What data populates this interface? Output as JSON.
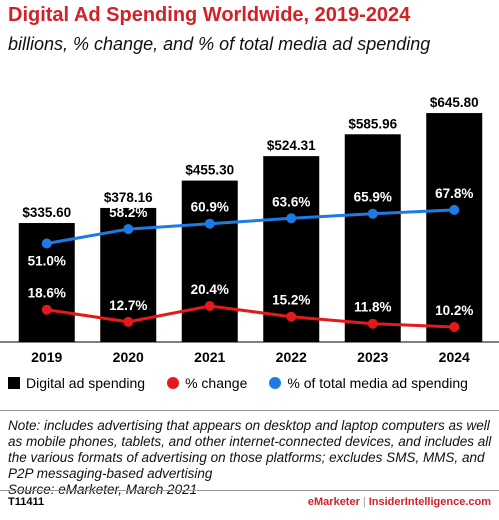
{
  "title": "Digital Ad Spending Worldwide, 2019-2024",
  "subtitle": "billions, % change, and % of total media ad spending",
  "colors": {
    "title": "#d32128",
    "bars": "#000000",
    "change_line": "#e31a1c",
    "share_line": "#1e7be3"
  },
  "chart_data": {
    "type": "bar",
    "categories": [
      "2019",
      "2020",
      "2021",
      "2022",
      "2023",
      "2024"
    ],
    "series": [
      {
        "name": "Digital ad spending",
        "kind": "bar",
        "values": [
          335.6,
          378.16,
          455.3,
          524.31,
          585.96,
          645.8
        ],
        "labels": [
          "$335.60",
          "$378.16",
          "$455.30",
          "$524.31",
          "$585.96",
          "$645.80"
        ]
      },
      {
        "name": "% change",
        "kind": "line",
        "values": [
          18.6,
          12.7,
          20.4,
          15.2,
          11.8,
          10.2
        ],
        "labels": [
          "18.6%",
          "12.7%",
          "20.4%",
          "15.2%",
          "11.8%",
          "10.2%"
        ]
      },
      {
        "name": "% of total media ad spending",
        "kind": "line",
        "values": [
          51.0,
          58.2,
          60.9,
          63.6,
          65.9,
          67.8
        ],
        "labels": [
          "51.0%",
          "58.2%",
          "60.9%",
          "63.6%",
          "65.9%",
          "67.8%"
        ]
      }
    ],
    "legend_position": "bottom",
    "grid": false
  },
  "legend": [
    {
      "label": "Digital ad spending",
      "color": "#000000",
      "shape": "square"
    },
    {
      "label": "% change",
      "color": "#e31a1c",
      "shape": "circle"
    },
    {
      "label": "% of total media ad spending",
      "color": "#1e7be3",
      "shape": "circle"
    }
  ],
  "note": "Note: includes advertising that appears on desktop and laptop computers as well as mobile phones, tablets, and other internet-connected devices, and includes all the various formats of advertising on those platforms; excludes SMS, MMS, and P2P messaging-based advertising",
  "source": "Source: eMarketer, March 2021",
  "chart_id": "T11411",
  "brand": {
    "left": "eMarketer",
    "separator": "|",
    "right": "InsiderIntelligence.com"
  }
}
